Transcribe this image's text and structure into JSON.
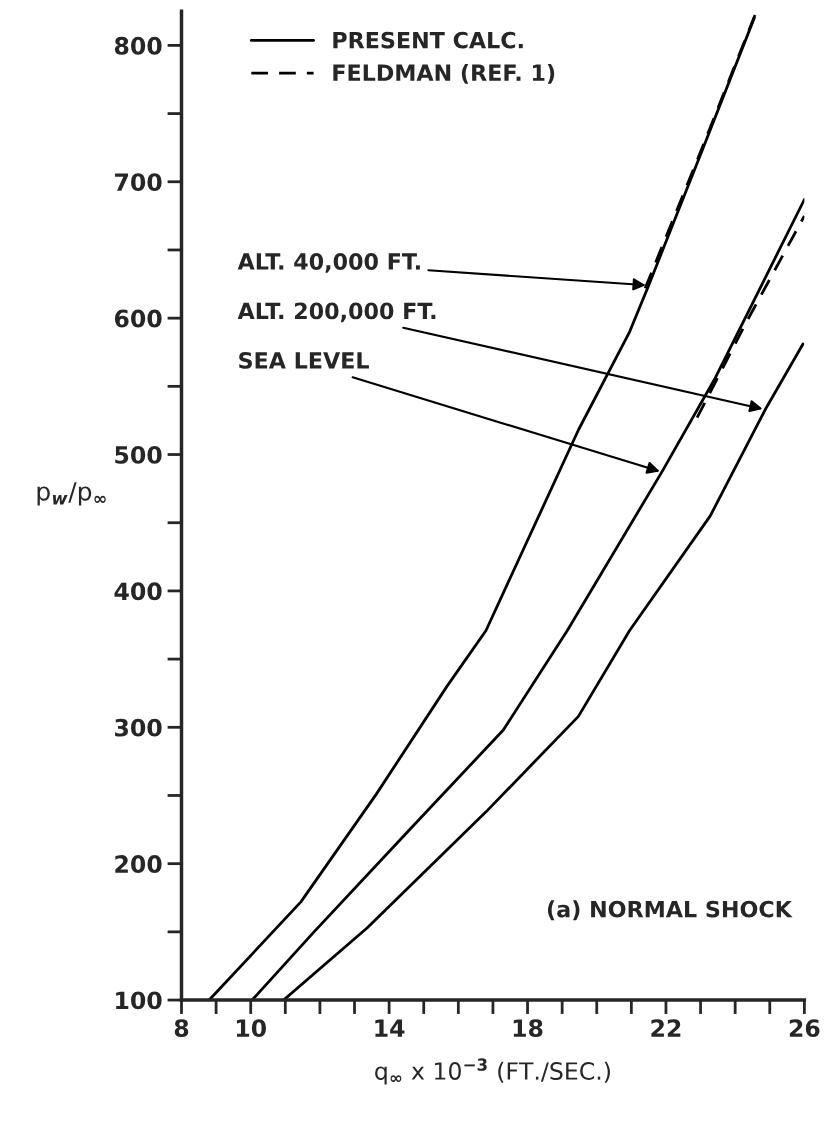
{
  "chart_data": {
    "type": "line",
    "xlabel": "q$_{∞}$ x 10$^{−3}$ (FT./SEC.)",
    "ylabel": "p$_{w}$/p$_{∞}$",
    "xlim": [
      8,
      26
    ],
    "ylim": [
      100,
      825
    ],
    "xticks": [
      8,
      {
        "value": 9,
        "label": null
      },
      10,
      {
        "value": 11,
        "label": null
      },
      {
        "value": 12,
        "label": null
      },
      {
        "value": 13,
        "label": null
      },
      14,
      {
        "value": 15,
        "label": null
      },
      {
        "value": 16,
        "label": null
      },
      {
        "value": 17,
        "label": null
      },
      18,
      {
        "value": 19,
        "label": null
      },
      {
        "value": 20,
        "label": null
      },
      {
        "value": 21,
        "label": null
      },
      22,
      {
        "value": 23,
        "label": null
      },
      {
        "value": 24,
        "label": null
      },
      {
        "value": 25,
        "label": null
      },
      26
    ],
    "yticks": [
      100,
      {
        "value": 150,
        "label": null
      },
      200,
      {
        "value": 250,
        "label": null
      },
      300,
      {
        "value": 350,
        "label": null
      },
      400,
      {
        "value": 450,
        "label": null
      },
      500,
      {
        "value": 550,
        "label": null
      },
      600,
      {
        "value": 650,
        "label": null
      },
      700,
      {
        "value": 750,
        "label": null
      },
      800
    ],
    "grid": false,
    "legend": "top left",
    "series": [
      {
        "name": "PRESENT CALC.",
        "color": "#000000",
        "line_style": "solid",
        "x": [
          8.8,
          11.45,
          13.63,
          15.67,
          16.8,
          19.47,
          20.95,
          21.5,
          23.0,
          24.55
        ],
        "values": [
          100,
          172,
          251,
          330,
          371,
          518,
          590,
          624,
          720,
          820
        ]
      },
      {
        "color": "#000000",
        "line_style": "solid",
        "x": [
          10.04,
          11.83,
          14.63,
          17.3,
          19.15,
          21.9,
          23.4,
          26.0
        ],
        "values": [
          100,
          150,
          226,
          298,
          371,
          488,
          555,
          687
        ]
      },
      {
        "color": "#000000",
        "line_style": "solid",
        "x": [
          10.95,
          13.37,
          16.8,
          19.47,
          20.95,
          23.28,
          24.87,
          25.96
        ],
        "values": [
          100,
          153,
          238,
          308,
          371,
          455,
          533,
          581
        ]
      },
      {
        "name": "FELDMAN (REF. 1)",
        "color": "#000000",
        "line_style": "dashed",
        "x": [
          21.4,
          23.0,
          24.6
        ],
        "values": [
          622,
          722,
          824
        ]
      },
      {
        "color": "#000000",
        "line_style": "dashed",
        "x": [
          22.9,
          24.3,
          26.0
        ],
        "values": [
          527,
          596,
          675
        ]
      }
    ],
    "annotations": [
      {
        "text": "ALT. 40,000 FT.",
        "x": 21.5,
        "y": 624
      },
      {
        "text": "ALT. 200,000 FT.",
        "x": 24.87,
        "y": 533
      },
      {
        "text": "SEA LEVEL",
        "x": 21.9,
        "y": 487
      },
      "(a) NORMAL SHOCK"
    ]
  }
}
